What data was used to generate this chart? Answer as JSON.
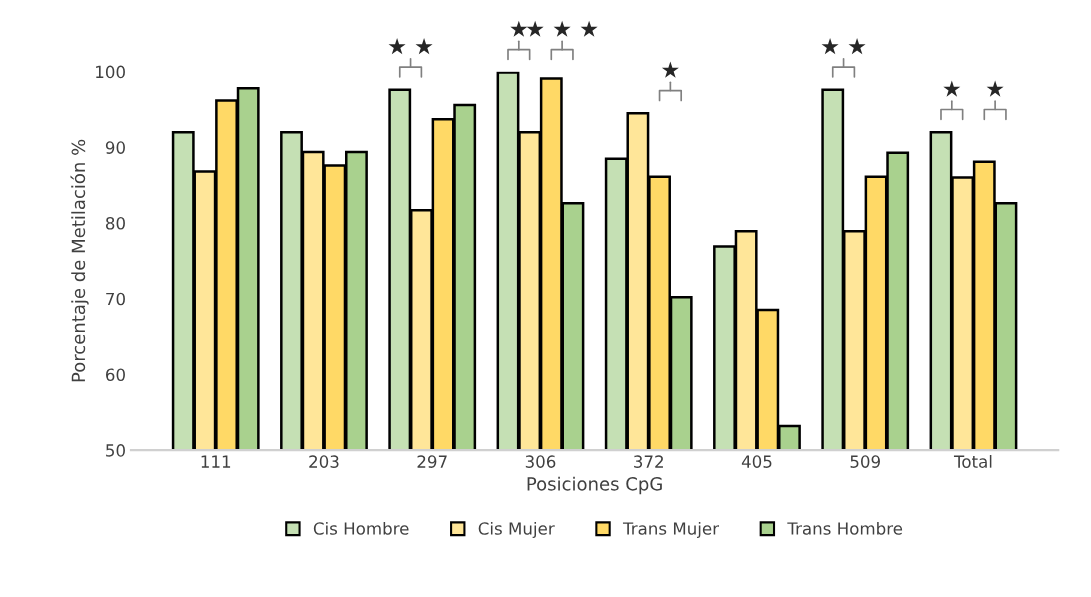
{
  "chart_data": {
    "type": "bar",
    "xlabel": "Posiciones CpG",
    "ylabel": "Porcentaje de Metilación %",
    "categories": [
      "111",
      "203",
      "297",
      "306",
      "372",
      "405",
      "509",
      "Total"
    ],
    "series": [
      {
        "name": "Cis Hombre",
        "color": "#c5e0b4",
        "values": [
          92.0,
          92.0,
          97.6,
          99.9,
          88.5,
          76.9,
          97.6,
          92.0
        ]
      },
      {
        "name": "Cis Mujer",
        "color": "#ffe699",
        "values": [
          86.8,
          89.4,
          81.7,
          92.0,
          94.5,
          78.9,
          78.9,
          86.0
        ]
      },
      {
        "name": "Trans Mujer",
        "color": "#ffd966",
        "values": [
          96.2,
          87.6,
          93.7,
          99.1,
          86.1,
          68.5,
          86.1,
          88.1
        ]
      },
      {
        "name": "Trans Hombre",
        "color": "#a9d18e",
        "values": [
          97.8,
          89.4,
          95.6,
          82.6,
          70.2,
          53.2,
          89.3,
          82.6
        ]
      }
    ],
    "ylim": [
      50,
      100
    ],
    "yticks": [
      50,
      60,
      70,
      80,
      90,
      100
    ],
    "grid": false,
    "legend": "bottom",
    "annotations": [
      "★ ★",
      "★",
      "★ ★ ★",
      "★",
      "★ ★",
      "★",
      "★"
    ]
  }
}
